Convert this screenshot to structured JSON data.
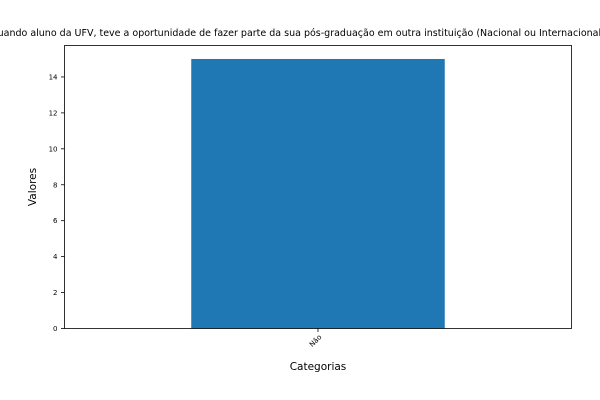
{
  "chart_data": {
    "type": "bar",
    "title": "Quando aluno da UFV, teve a oportunidade de fazer parte da sua pós-graduação em outra instituição (Nacional ou Internacional)?",
    "xlabel": "Categorias",
    "ylabel": "Valores",
    "categories": [
      "Não"
    ],
    "values": [
      15
    ],
    "ylim": [
      0,
      15.75
    ],
    "yticks": [
      0,
      2,
      4,
      6,
      8,
      10,
      12,
      14
    ],
    "grid": false,
    "legend": "none",
    "bar_color": "#1f77b4"
  }
}
